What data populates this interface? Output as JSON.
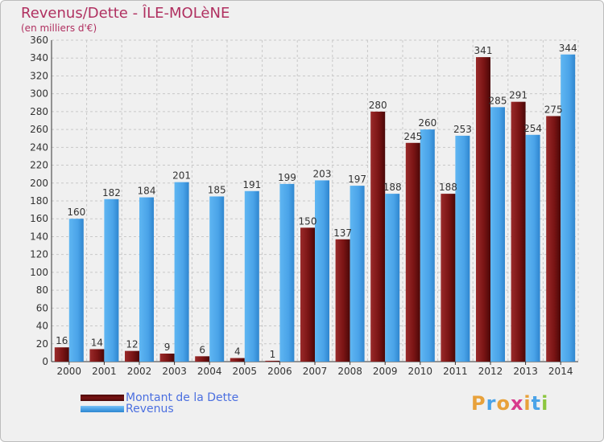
{
  "header": {
    "title": "Revenus/Dette - ÎLE-MOLèNE",
    "subtitle": "(en milliers d'€)"
  },
  "legend": {
    "items": [
      {
        "label": "Montant de la Dette",
        "color": "#6b0f0f"
      },
      {
        "label": "Revenus",
        "color": "#4aa3e8"
      }
    ]
  },
  "logo": {
    "text": "Proxiti",
    "letter_colors": [
      "#e8a13a",
      "#4aa3e8",
      "#e8a13a",
      "#d83b8c",
      "#e8a13a",
      "#4aa3e8",
      "#8cc63f"
    ]
  },
  "chart_data": {
    "type": "bar",
    "categories": [
      "2000",
      "2001",
      "2002",
      "2003",
      "2004",
      "2005",
      "2006",
      "2007",
      "2008",
      "2009",
      "2010",
      "2011",
      "2012",
      "2013",
      "2014"
    ],
    "series": [
      {
        "name": "Montant de la Dette",
        "color": "#7a1414",
        "values": [
          16,
          14,
          12,
          9,
          6,
          4,
          1,
          150,
          137,
          280,
          245,
          188,
          341,
          291,
          275
        ]
      },
      {
        "name": "Revenus",
        "color": "#4aa3e8",
        "values": [
          160,
          182,
          184,
          201,
          185,
          191,
          199,
          203,
          197,
          188,
          260,
          253,
          285,
          254,
          344
        ]
      }
    ],
    "ylim": [
      0,
      360
    ],
    "ytick_step": 20,
    "grid": true
  }
}
